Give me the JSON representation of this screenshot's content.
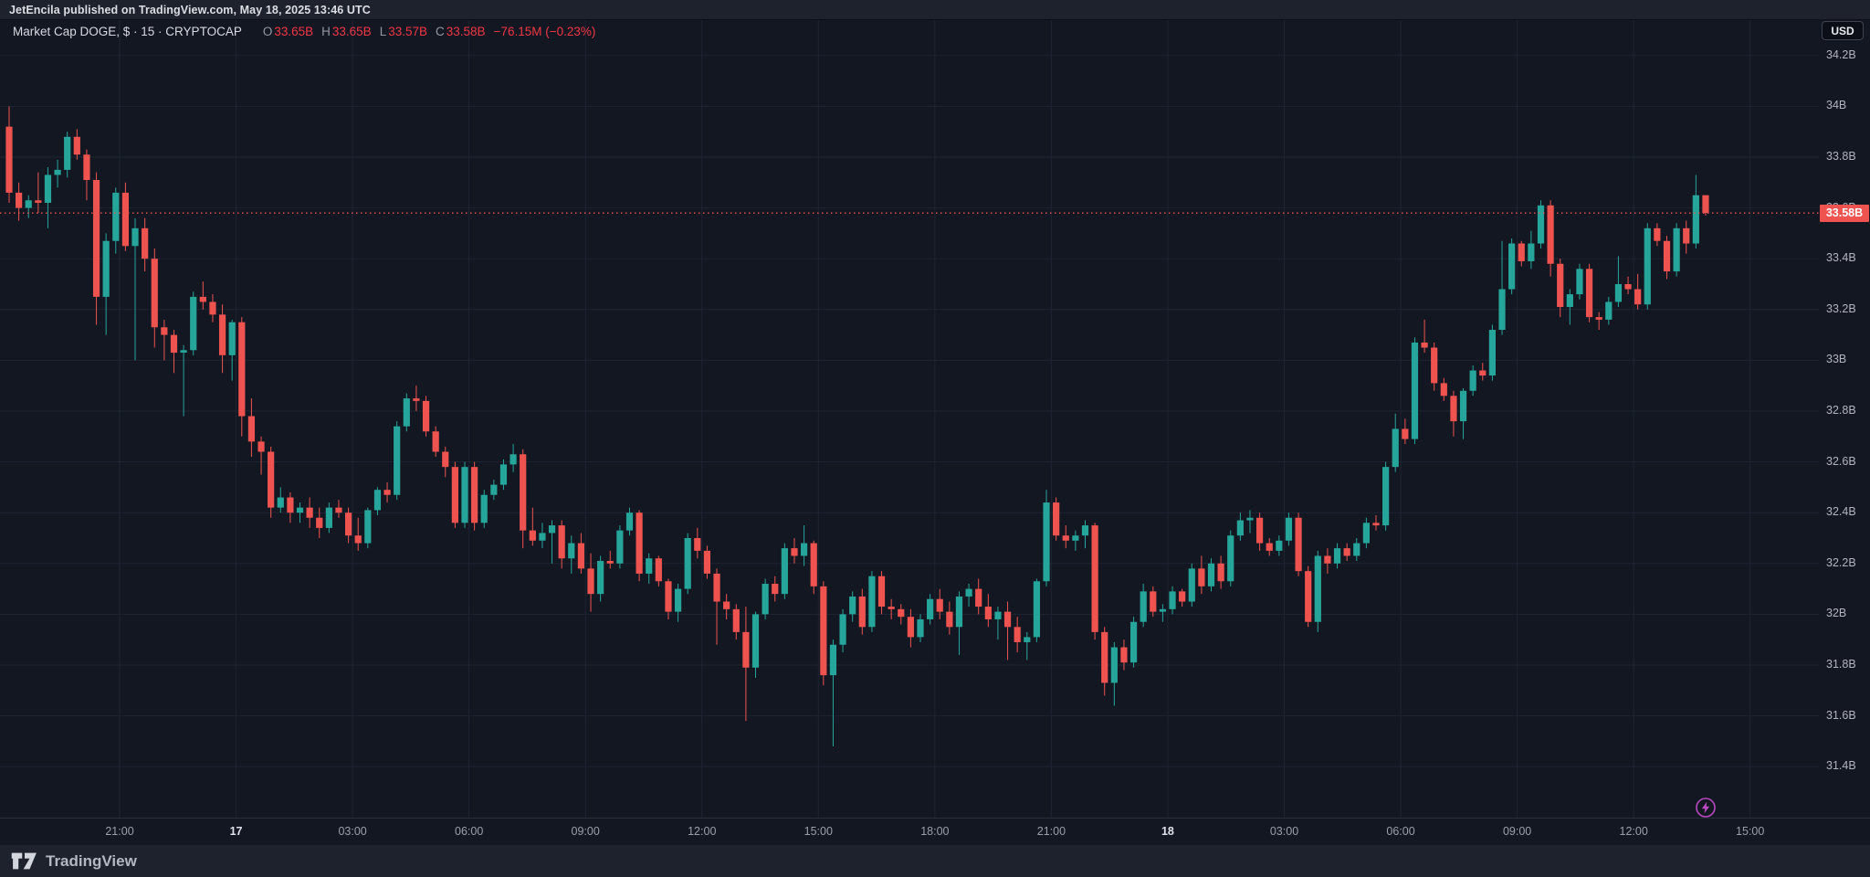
{
  "colors": {
    "chart_bg": "#131722",
    "panel_bg": "#1e222d",
    "up": "#26a69a",
    "down": "#ef5350",
    "accent_red": "#f23645",
    "purple": "#b84ac0"
  },
  "top_bar": {
    "text": "JetEncila published on TradingView.com, May 18, 2025 13:46 UTC"
  },
  "legend": {
    "symbol": "Market Cap DOGE, $ · 15 · CRYPTOCAP",
    "o_label": "O",
    "o": "33.65B",
    "h_label": "H",
    "h": "33.65B",
    "l_label": "L",
    "l": "33.57B",
    "c_label": "C",
    "c": "33.58B",
    "change": "−76.15M (−0.23%)"
  },
  "price_axis": {
    "currency_button": "USD",
    "last_price_label": "33.58B",
    "ticks": [
      {
        "label": "34.2B",
        "value": 34.2
      },
      {
        "label": "34B",
        "value": 34.0
      },
      {
        "label": "33.8B",
        "value": 33.8
      },
      {
        "label": "33.6B",
        "value": 33.6
      },
      {
        "label": "33.4B",
        "value": 33.4
      },
      {
        "label": "33.2B",
        "value": 33.2
      },
      {
        "label": "33B",
        "value": 33.0
      },
      {
        "label": "32.8B",
        "value": 32.8
      },
      {
        "label": "32.6B",
        "value": 32.6
      },
      {
        "label": "32.4B",
        "value": 32.4
      },
      {
        "label": "32.2B",
        "value": 32.2
      },
      {
        "label": "32B",
        "value": 32.0
      },
      {
        "label": "31.8B",
        "value": 31.8
      },
      {
        "label": "31.6B",
        "value": 31.6
      },
      {
        "label": "31.4B",
        "value": 31.4
      }
    ]
  },
  "time_axis": {
    "ticks": [
      {
        "label": "21:00",
        "day": false
      },
      {
        "label": "17",
        "day": true
      },
      {
        "label": "03:00",
        "day": false
      },
      {
        "label": "06:00",
        "day": false
      },
      {
        "label": "09:00",
        "day": false
      },
      {
        "label": "12:00",
        "day": false
      },
      {
        "label": "15:00",
        "day": false
      },
      {
        "label": "18:00",
        "day": false
      },
      {
        "label": "21:00",
        "day": false
      },
      {
        "label": "18",
        "day": true
      },
      {
        "label": "03:00",
        "day": false
      },
      {
        "label": "06:00",
        "day": false
      },
      {
        "label": "09:00",
        "day": false
      },
      {
        "label": "12:00",
        "day": false
      },
      {
        "label": "15:00",
        "day": false
      }
    ]
  },
  "footer": {
    "brand": "TradingView"
  },
  "icons": {
    "flash": "lightning-icon",
    "logo": "tradingview-logo"
  },
  "chart_data": {
    "type": "candlestick",
    "title": "Market Cap DOGE",
    "interval": "15",
    "source": "CRYPTOCAP",
    "currency": "USD",
    "start": "2025-05-16 18:00 UTC",
    "interval_minutes": 15,
    "ohlc_current": {
      "open": "33.65B",
      "high": "33.65B",
      "low": "33.57B",
      "close": "33.58B",
      "change": "-76.15M",
      "change_pct": "-0.23%"
    },
    "last_price": 33.58,
    "ylim": [
      31.3,
      34.25
    ],
    "y_unit": "B USD",
    "up_color": "#26a69a",
    "down_color": "#ef5350",
    "candles": [
      [
        33.92,
        34.0,
        33.62,
        33.66
      ],
      [
        33.66,
        33.7,
        33.55,
        33.6
      ],
      [
        33.6,
        33.65,
        33.56,
        33.63
      ],
      [
        33.63,
        33.74,
        33.58,
        33.62
      ],
      [
        33.62,
        33.76,
        33.52,
        33.73
      ],
      [
        33.73,
        33.79,
        33.68,
        33.75
      ],
      [
        33.75,
        33.9,
        33.72,
        33.88
      ],
      [
        33.88,
        33.91,
        33.79,
        33.81
      ],
      [
        33.81,
        33.83,
        33.63,
        33.71
      ],
      [
        33.71,
        33.74,
        33.14,
        33.25
      ],
      [
        33.25,
        33.5,
        33.1,
        33.47
      ],
      [
        33.47,
        33.68,
        33.42,
        33.66
      ],
      [
        33.66,
        33.7,
        33.43,
        33.45
      ],
      [
        33.45,
        33.56,
        33.0,
        33.52
      ],
      [
        33.52,
        33.56,
        33.35,
        33.4
      ],
      [
        33.4,
        33.44,
        33.05,
        33.13
      ],
      [
        33.13,
        33.16,
        33.0,
        33.1
      ],
      [
        33.1,
        33.12,
        32.95,
        33.03
      ],
      [
        33.03,
        33.06,
        32.78,
        33.04
      ],
      [
        33.04,
        33.27,
        33.02,
        33.25
      ],
      [
        33.25,
        33.31,
        33.2,
        33.23
      ],
      [
        33.23,
        33.26,
        33.15,
        33.18
      ],
      [
        33.18,
        33.22,
        32.95,
        33.02
      ],
      [
        33.02,
        33.16,
        32.92,
        33.15
      ],
      [
        33.15,
        33.17,
        32.7,
        32.78
      ],
      [
        32.78,
        32.85,
        32.62,
        32.68
      ],
      [
        32.68,
        32.7,
        32.55,
        32.64
      ],
      [
        32.64,
        32.66,
        32.38,
        32.42
      ],
      [
        32.42,
        32.5,
        32.4,
        32.46
      ],
      [
        32.46,
        32.48,
        32.36,
        32.4
      ],
      [
        32.4,
        32.44,
        32.36,
        32.42
      ],
      [
        32.42,
        32.46,
        32.34,
        32.38
      ],
      [
        32.38,
        32.42,
        32.3,
        32.34
      ],
      [
        32.34,
        32.44,
        32.32,
        32.42
      ],
      [
        32.42,
        32.45,
        32.38,
        32.4
      ],
      [
        32.4,
        32.42,
        32.28,
        32.31
      ],
      [
        32.31,
        32.38,
        32.25,
        32.28
      ],
      [
        32.28,
        32.42,
        32.26,
        32.41
      ],
      [
        32.41,
        32.5,
        32.39,
        32.49
      ],
      [
        32.49,
        32.52,
        32.44,
        32.47
      ],
      [
        32.47,
        32.76,
        32.45,
        32.74
      ],
      [
        32.74,
        32.87,
        32.72,
        32.85
      ],
      [
        32.85,
        32.9,
        32.8,
        32.84
      ],
      [
        32.84,
        32.86,
        32.7,
        32.72
      ],
      [
        32.72,
        32.74,
        32.62,
        32.64
      ],
      [
        32.64,
        32.66,
        32.54,
        32.58
      ],
      [
        32.58,
        32.6,
        32.34,
        32.36
      ],
      [
        32.36,
        32.6,
        32.34,
        32.58
      ],
      [
        32.58,
        32.6,
        32.33,
        32.36
      ],
      [
        32.36,
        32.49,
        32.34,
        32.47
      ],
      [
        32.47,
        32.53,
        32.45,
        32.51
      ],
      [
        32.51,
        32.61,
        32.49,
        32.59
      ],
      [
        32.59,
        32.67,
        32.56,
        32.63
      ],
      [
        32.63,
        32.65,
        32.26,
        32.33
      ],
      [
        32.33,
        32.42,
        32.27,
        32.29
      ],
      [
        32.29,
        32.36,
        32.26,
        32.32
      ],
      [
        32.32,
        32.37,
        32.2,
        32.35
      ],
      [
        32.35,
        32.37,
        32.18,
        32.22
      ],
      [
        32.22,
        32.31,
        32.16,
        32.28
      ],
      [
        32.28,
        32.32,
        32.16,
        32.18
      ],
      [
        32.18,
        32.24,
        32.01,
        32.08
      ],
      [
        32.08,
        32.23,
        32.05,
        32.21
      ],
      [
        32.21,
        32.25,
        32.18,
        32.2
      ],
      [
        32.2,
        32.35,
        32.18,
        32.33
      ],
      [
        32.33,
        32.42,
        32.31,
        32.4
      ],
      [
        32.4,
        32.41,
        32.13,
        32.16
      ],
      [
        32.16,
        32.24,
        32.12,
        32.22
      ],
      [
        32.22,
        32.23,
        32.11,
        32.13
      ],
      [
        32.13,
        32.14,
        31.98,
        32.01
      ],
      [
        32.01,
        32.12,
        31.97,
        32.1
      ],
      [
        32.1,
        32.32,
        32.08,
        32.3
      ],
      [
        32.3,
        32.34,
        32.22,
        32.25
      ],
      [
        32.25,
        32.27,
        32.14,
        32.16
      ],
      [
        32.16,
        32.18,
        31.88,
        32.05
      ],
      [
        32.05,
        32.08,
        31.98,
        32.02
      ],
      [
        32.02,
        32.04,
        31.9,
        31.93
      ],
      [
        31.93,
        32.03,
        31.58,
        31.79
      ],
      [
        31.79,
        32.01,
        31.75,
        32.0
      ],
      [
        32.0,
        32.14,
        31.98,
        32.12
      ],
      [
        32.12,
        32.15,
        32.05,
        32.08
      ],
      [
        32.08,
        32.28,
        32.06,
        32.26
      ],
      [
        32.26,
        32.3,
        32.2,
        32.23
      ],
      [
        32.23,
        32.35,
        32.19,
        32.28
      ],
      [
        32.28,
        32.29,
        32.08,
        32.11
      ],
      [
        32.11,
        32.13,
        31.72,
        31.76
      ],
      [
        31.76,
        31.9,
        31.48,
        31.88
      ],
      [
        31.88,
        32.02,
        31.85,
        32.0
      ],
      [
        32.0,
        32.09,
        31.97,
        32.07
      ],
      [
        32.07,
        32.1,
        31.92,
        31.95
      ],
      [
        31.95,
        32.17,
        31.93,
        32.15
      ],
      [
        32.15,
        32.17,
        32.0,
        32.03
      ],
      [
        32.03,
        32.06,
        31.98,
        32.02
      ],
      [
        32.02,
        32.04,
        31.96,
        31.99
      ],
      [
        31.99,
        32.02,
        31.87,
        31.91
      ],
      [
        31.91,
        32.0,
        31.89,
        31.98
      ],
      [
        31.98,
        32.08,
        31.96,
        32.06
      ],
      [
        32.06,
        32.1,
        31.98,
        32.01
      ],
      [
        32.01,
        32.05,
        31.92,
        31.95
      ],
      [
        31.95,
        32.09,
        31.84,
        32.07
      ],
      [
        32.07,
        32.12,
        32.03,
        32.1
      ],
      [
        32.1,
        32.14,
        32.0,
        32.03
      ],
      [
        32.03,
        32.08,
        31.95,
        31.98
      ],
      [
        31.98,
        32.03,
        31.9,
        32.01
      ],
      [
        32.01,
        32.05,
        31.82,
        31.95
      ],
      [
        31.95,
        31.99,
        31.85,
        31.89
      ],
      [
        31.89,
        31.93,
        31.82,
        31.91
      ],
      [
        31.91,
        32.14,
        31.89,
        32.13
      ],
      [
        32.13,
        32.49,
        32.11,
        32.44
      ],
      [
        32.44,
        32.46,
        32.29,
        32.31
      ],
      [
        32.31,
        32.35,
        32.26,
        32.29
      ],
      [
        32.29,
        32.33,
        32.25,
        32.31
      ],
      [
        32.31,
        32.37,
        32.26,
        32.35
      ],
      [
        32.35,
        32.36,
        31.9,
        31.93
      ],
      [
        31.93,
        31.95,
        31.68,
        31.73
      ],
      [
        31.73,
        31.89,
        31.64,
        31.87
      ],
      [
        31.87,
        31.9,
        31.78,
        31.81
      ],
      [
        31.81,
        31.99,
        31.79,
        31.97
      ],
      [
        31.97,
        32.12,
        31.95,
        32.09
      ],
      [
        32.09,
        32.11,
        31.99,
        32.01
      ],
      [
        32.01,
        32.04,
        31.97,
        32.02
      ],
      [
        32.02,
        32.11,
        32.0,
        32.09
      ],
      [
        32.09,
        32.1,
        32.03,
        32.05
      ],
      [
        32.05,
        32.2,
        32.03,
        32.18
      ],
      [
        32.18,
        32.23,
        32.08,
        32.11
      ],
      [
        32.11,
        32.22,
        32.09,
        32.2
      ],
      [
        32.2,
        32.23,
        32.1,
        32.13
      ],
      [
        32.13,
        32.33,
        32.11,
        32.31
      ],
      [
        32.31,
        32.4,
        32.29,
        32.37
      ],
      [
        32.37,
        32.41,
        32.32,
        32.38
      ],
      [
        32.38,
        32.4,
        32.25,
        32.28
      ],
      [
        32.28,
        32.3,
        32.23,
        32.25
      ],
      [
        32.25,
        32.31,
        32.23,
        32.29
      ],
      [
        32.29,
        32.4,
        32.27,
        32.38
      ],
      [
        32.38,
        32.4,
        32.15,
        32.17
      ],
      [
        32.17,
        32.19,
        31.95,
        31.97
      ],
      [
        31.97,
        32.25,
        31.93,
        32.23
      ],
      [
        32.23,
        32.26,
        32.16,
        32.2
      ],
      [
        32.2,
        32.28,
        32.18,
        32.26
      ],
      [
        32.26,
        32.28,
        32.21,
        32.23
      ],
      [
        32.23,
        32.3,
        32.21,
        32.28
      ],
      [
        32.28,
        32.38,
        32.26,
        32.36
      ],
      [
        32.36,
        32.39,
        32.33,
        32.35
      ],
      [
        32.35,
        32.6,
        32.33,
        32.58
      ],
      [
        32.58,
        32.79,
        32.56,
        32.73
      ],
      [
        32.73,
        32.77,
        32.67,
        32.69
      ],
      [
        32.69,
        33.09,
        32.67,
        33.07
      ],
      [
        33.07,
        33.16,
        33.03,
        33.05
      ],
      [
        33.05,
        33.07,
        32.88,
        32.91
      ],
      [
        32.91,
        32.93,
        32.84,
        32.86
      ],
      [
        32.86,
        32.88,
        32.7,
        32.76
      ],
      [
        32.76,
        32.89,
        32.69,
        32.88
      ],
      [
        32.88,
        32.98,
        32.86,
        32.96
      ],
      [
        32.96,
        32.99,
        32.92,
        32.94
      ],
      [
        32.94,
        33.14,
        32.92,
        33.12
      ],
      [
        33.12,
        33.47,
        33.1,
        33.28
      ],
      [
        33.28,
        33.48,
        33.26,
        33.46
      ],
      [
        33.46,
        33.47,
        33.37,
        33.39
      ],
      [
        33.39,
        33.51,
        33.36,
        33.46
      ],
      [
        33.46,
        33.63,
        33.44,
        33.61
      ],
      [
        33.61,
        33.63,
        33.33,
        33.38
      ],
      [
        33.38,
        33.4,
        33.17,
        33.21
      ],
      [
        33.21,
        33.28,
        33.14,
        33.26
      ],
      [
        33.26,
        33.38,
        33.24,
        33.36
      ],
      [
        33.36,
        33.38,
        33.15,
        33.17
      ],
      [
        33.17,
        33.19,
        33.12,
        33.16
      ],
      [
        33.16,
        33.25,
        33.14,
        33.23
      ],
      [
        33.23,
        33.41,
        33.21,
        33.3
      ],
      [
        33.3,
        33.33,
        33.26,
        33.28
      ],
      [
        33.28,
        33.34,
        33.2,
        33.22
      ],
      [
        33.22,
        33.54,
        33.2,
        33.52
      ],
      [
        33.52,
        33.54,
        33.45,
        33.47
      ],
      [
        33.47,
        33.49,
        33.32,
        33.35
      ],
      [
        33.35,
        33.54,
        33.33,
        33.52
      ],
      [
        33.52,
        33.55,
        33.42,
        33.46
      ],
      [
        33.46,
        33.73,
        33.44,
        33.65
      ],
      [
        33.65,
        33.65,
        33.57,
        33.58
      ]
    ]
  }
}
